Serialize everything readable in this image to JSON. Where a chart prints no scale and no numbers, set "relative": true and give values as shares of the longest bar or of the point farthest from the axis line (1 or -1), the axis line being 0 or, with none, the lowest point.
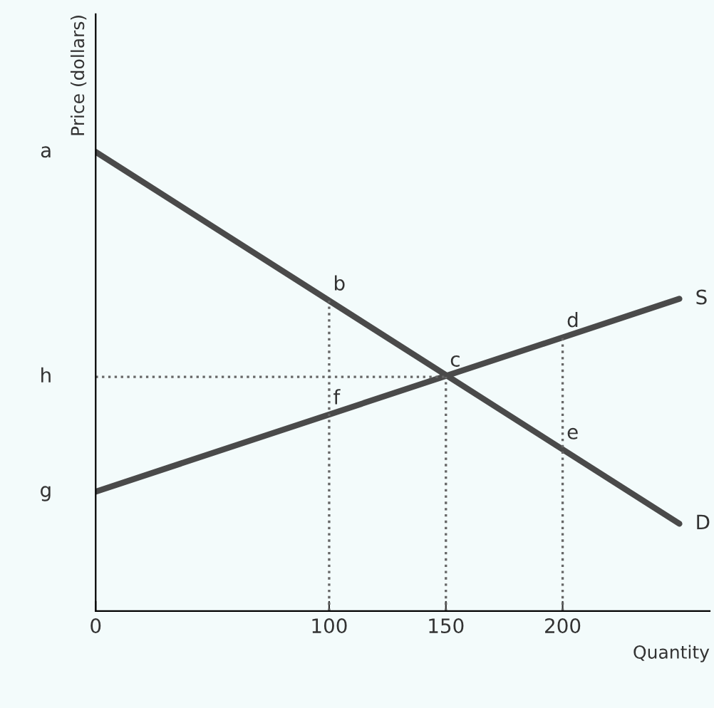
{
  "chart_data": {
    "type": "line",
    "relative": true,
    "xlabel": "Quantity",
    "ylabel": "Price (dollars)",
    "xlim": [
      0,
      263
    ],
    "xticks": [
      0,
      100,
      150,
      200
    ],
    "grid": false,
    "legend": false,
    "series": [
      {
        "name": "D",
        "color": "#4a4a4a",
        "x": [
          0,
          250
        ],
        "values": [
          1,
          0.19
        ],
        "line_style": "solid"
      },
      {
        "name": "S",
        "color": "#4a4a4a",
        "x": [
          0,
          250
        ],
        "values": [
          0.26,
          0.68
        ],
        "line_style": "solid"
      },
      {
        "color": "#666666",
        "x": [
          0,
          150
        ],
        "values": [
          0.51,
          0.51
        ],
        "line_style": "dotted"
      },
      {
        "color": "#666666",
        "x": [
          100,
          100
        ],
        "values": [
          0,
          0.676
        ],
        "line_style": "dotted"
      },
      {
        "color": "#666666",
        "x": [
          150,
          150
        ],
        "values": [
          0,
          0.51
        ],
        "line_style": "dotted"
      },
      {
        "color": "#666666",
        "x": [
          200,
          200
        ],
        "values": [
          0,
          0.596
        ],
        "line_style": "dotted"
      }
    ],
    "annotations": [
      {
        "text": "a",
        "x": 0,
        "y": 1
      },
      {
        "text": "h",
        "x": 0,
        "y": 0.51
      },
      {
        "text": "g",
        "x": 0,
        "y": 0.26
      },
      {
        "text": "b",
        "x": 100,
        "y": 0.676
      },
      {
        "text": "c",
        "x": 150,
        "y": 0.51
      },
      {
        "text": "d",
        "x": 200,
        "y": 0.596
      },
      {
        "text": "e",
        "x": 200,
        "y": 0.352
      },
      {
        "text": "f",
        "x": 100,
        "y": 0.428
      }
    ]
  }
}
